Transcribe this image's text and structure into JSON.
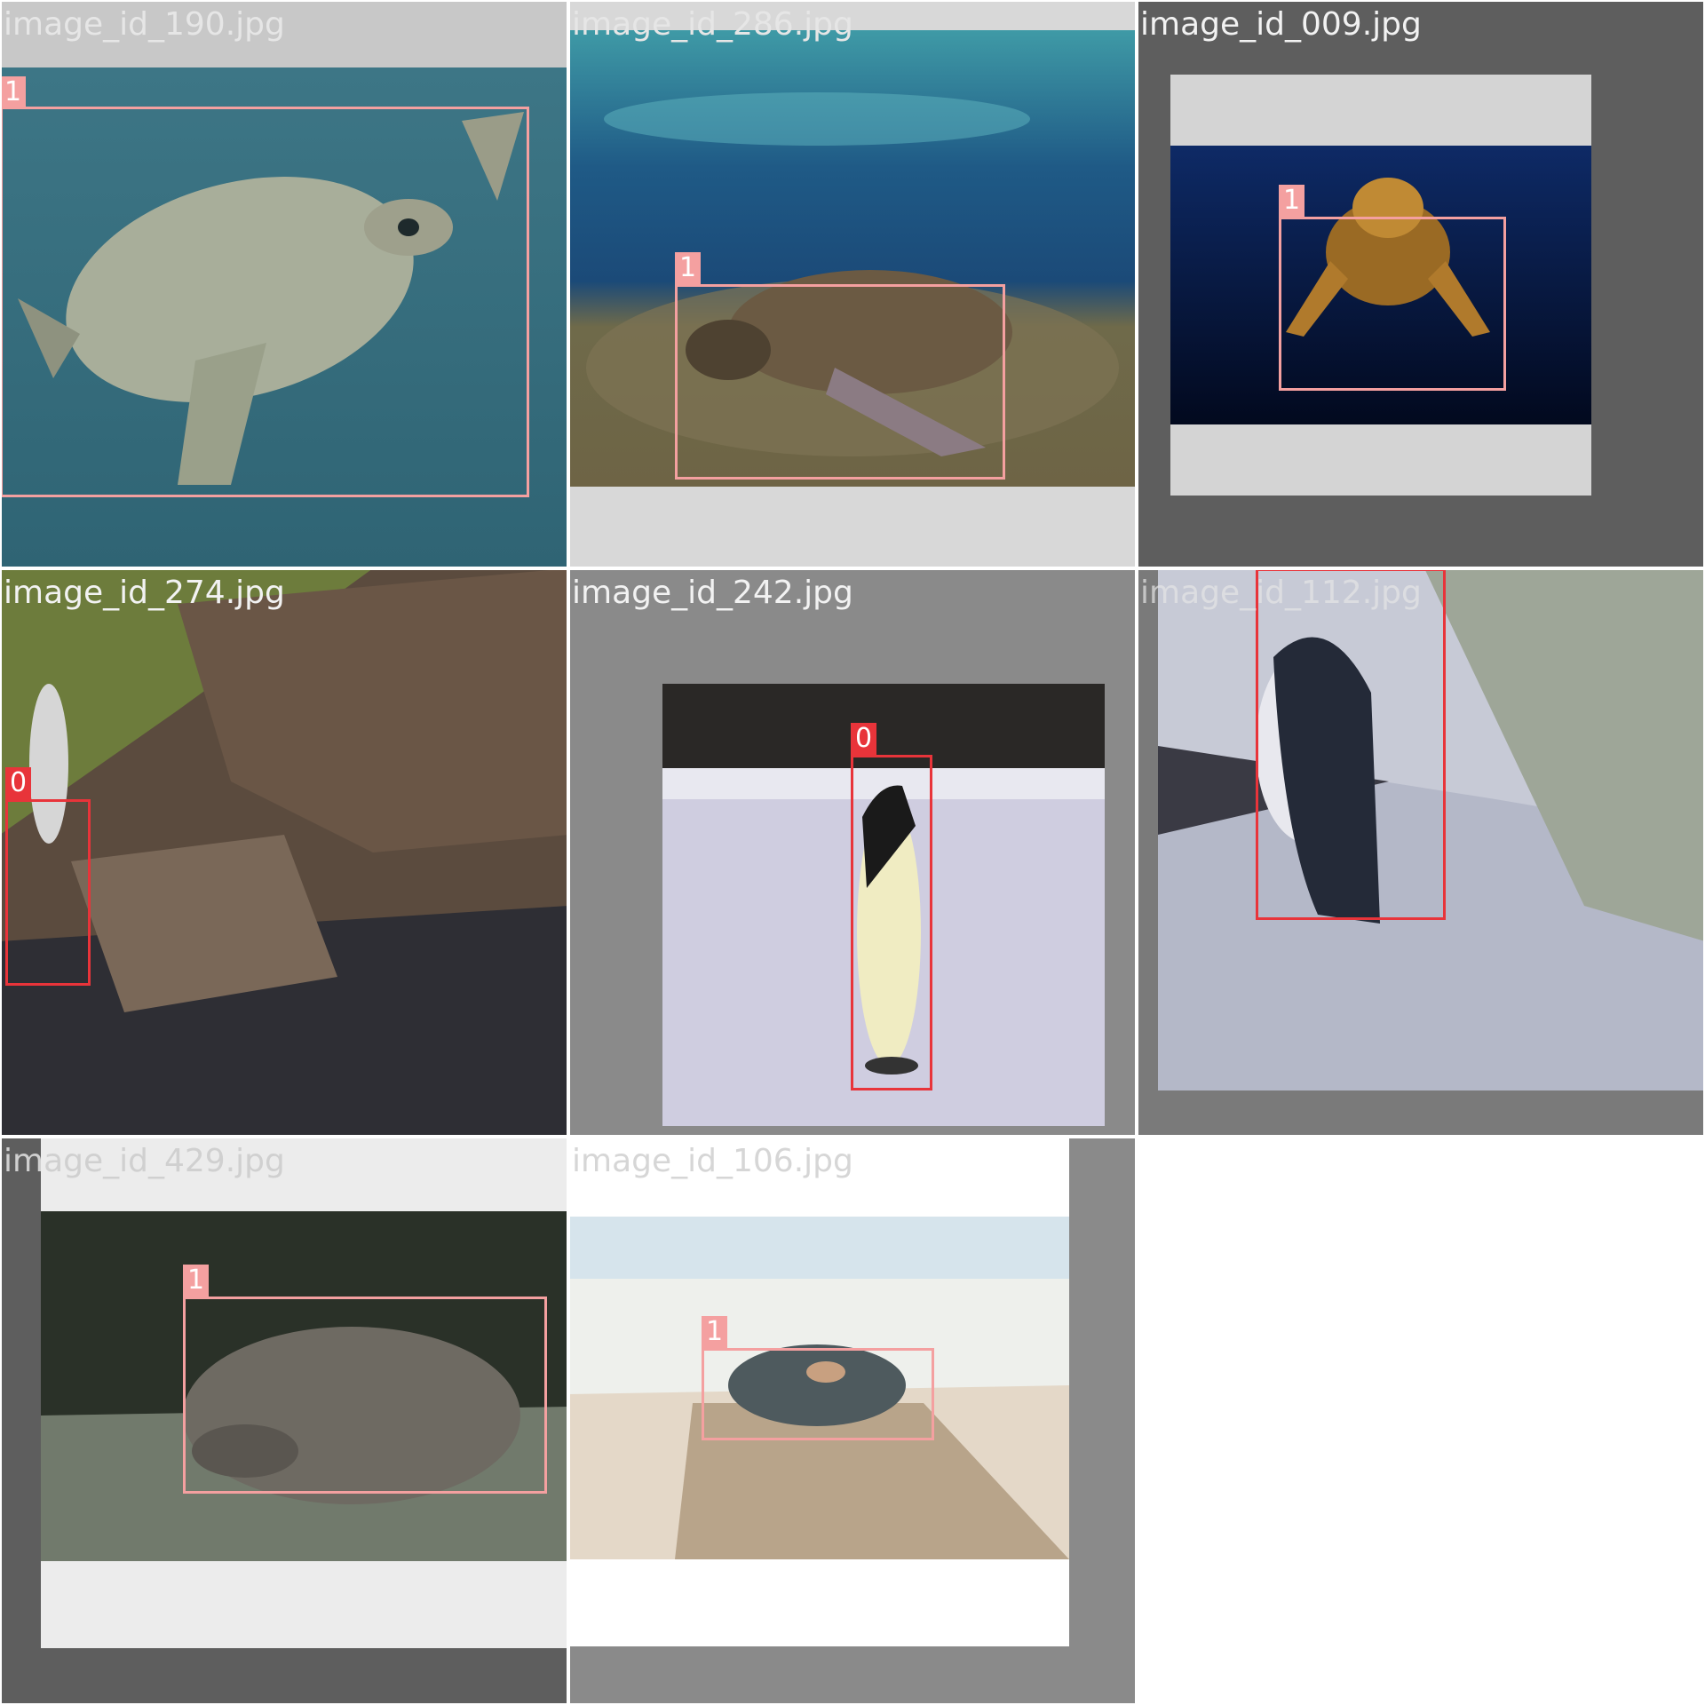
{
  "tiles": [
    {
      "filename": "image_id_190.jpg",
      "label_color": "#e6e6e6",
      "boxes": [
        {
          "class_id": "1",
          "color": "#f4a0a0"
        }
      ]
    },
    {
      "filename": "image_id_286.jpg",
      "label_color": "#e6e6e6",
      "boxes": [
        {
          "class_id": "1",
          "color": "#f4a0a0"
        }
      ]
    },
    {
      "filename": "image_id_009.jpg",
      "label_color": "#f2f2f2",
      "boxes": [
        {
          "class_id": "1",
          "color": "#f4a0a0"
        }
      ]
    },
    {
      "filename": "image_id_274.jpg",
      "label_color": "#f2f2f2",
      "boxes": [
        {
          "class_id": "0",
          "color": "#e8343a"
        }
      ]
    },
    {
      "filename": "image_id_242.jpg",
      "label_color": "#f2f2f2",
      "boxes": [
        {
          "class_id": "0",
          "color": "#e8343a"
        }
      ]
    },
    {
      "filename": "image_id_112.jpg",
      "label_color": "#e6e6e6",
      "boxes": [
        {
          "class_id": "0",
          "color": "#e8343a"
        }
      ]
    },
    {
      "filename": "image_id_429.jpg",
      "label_color": "#d0d0d0",
      "boxes": [
        {
          "class_id": "1",
          "color": "#f4a0a0"
        }
      ]
    },
    {
      "filename": "image_id_106.jpg",
      "label_color": "#d6d6d6",
      "boxes": [
        {
          "class_id": "1",
          "color": "#f4a0a0"
        }
      ]
    }
  ],
  "colors": {
    "class_0": "#e8343a",
    "class_1": "#f4a0a0"
  }
}
